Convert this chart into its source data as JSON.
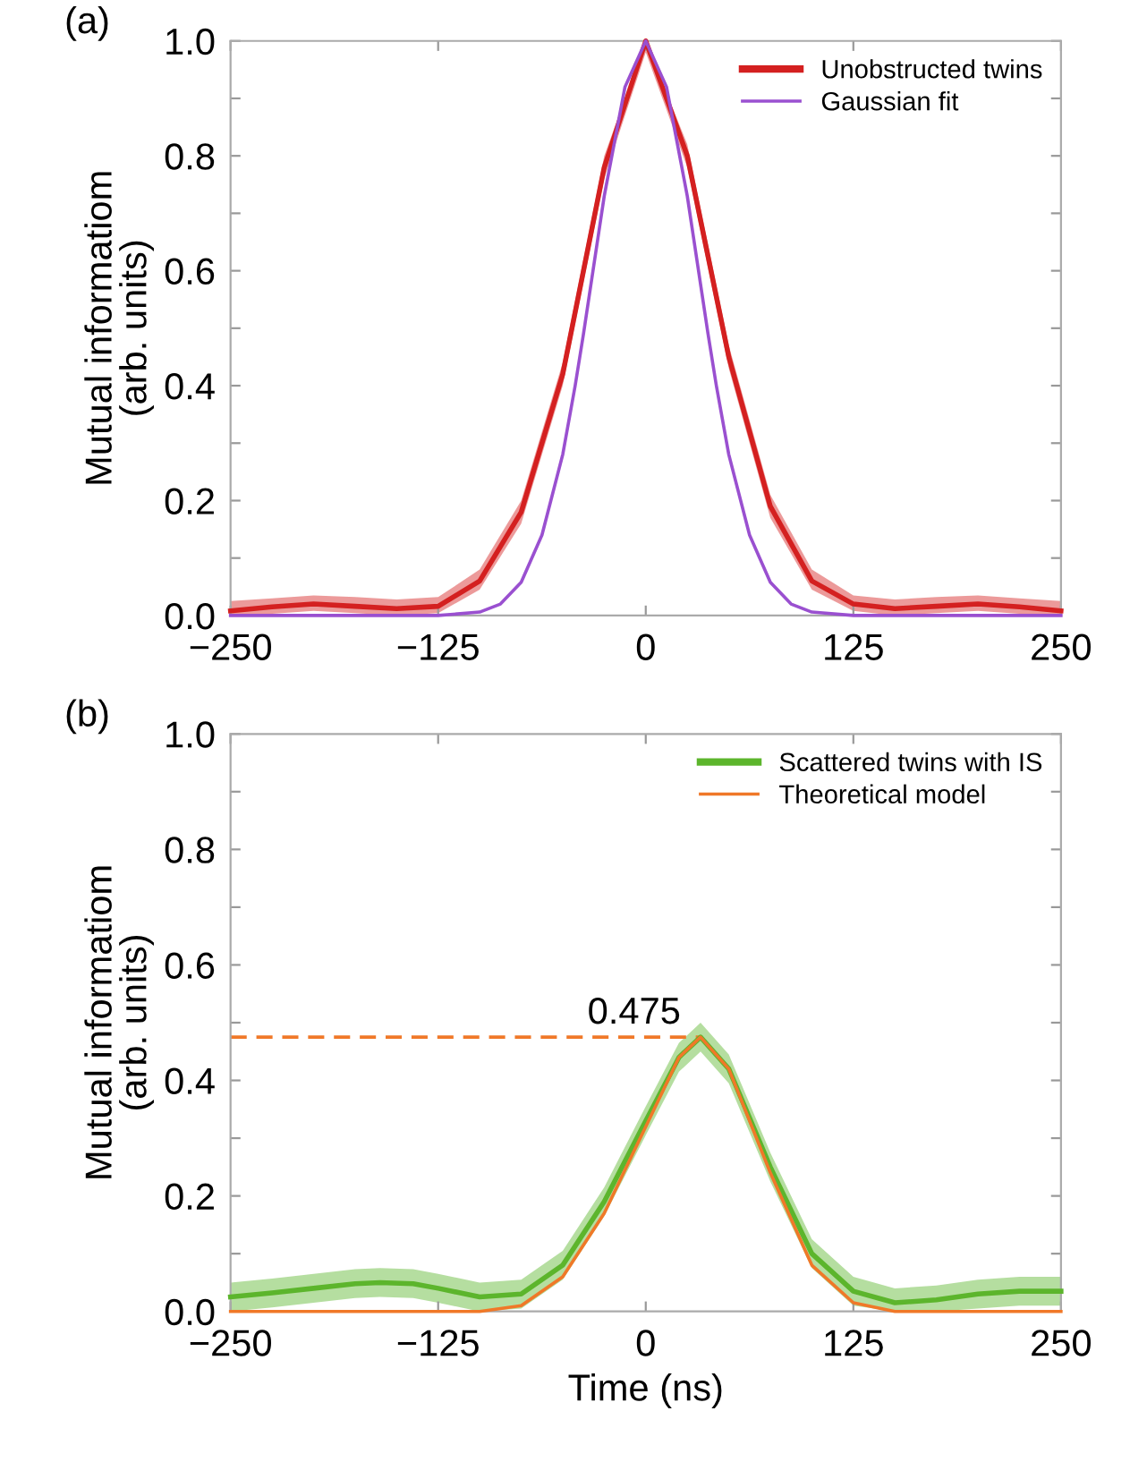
{
  "chart_data": [
    {
      "type": "line",
      "title": "(a)",
      "ylabel": "Mutual informatiom\n(arb. units)",
      "x": [
        -250,
        -225,
        -200,
        -175,
        -150,
        -125,
        -100,
        -75,
        -50,
        -25,
        0,
        25,
        50,
        75,
        100,
        125,
        150,
        175,
        200,
        225,
        250
      ],
      "series": [
        {
          "name": "Unobstructed twins",
          "color": "#d42020",
          "values": [
            0.008,
            0.015,
            0.02,
            0.016,
            0.012,
            0.016,
            0.06,
            0.18,
            0.42,
            0.78,
            1.0,
            0.8,
            0.45,
            0.19,
            0.06,
            0.02,
            0.012,
            0.016,
            0.02,
            0.015,
            0.008
          ],
          "lower": [
            0.0,
            0.003,
            0.008,
            0.004,
            0.0,
            0.004,
            0.045,
            0.16,
            0.4,
            0.76,
            0.98,
            0.78,
            0.43,
            0.17,
            0.045,
            0.008,
            0.0,
            0.004,
            0.008,
            0.003,
            0.0
          ],
          "upper": [
            0.025,
            0.03,
            0.035,
            0.032,
            0.028,
            0.032,
            0.08,
            0.2,
            0.44,
            0.8,
            1.0,
            0.82,
            0.47,
            0.21,
            0.08,
            0.035,
            0.028,
            0.032,
            0.035,
            0.03,
            0.025
          ]
        },
        {
          "name": "Gaussian fit",
          "color": "#9a50d0",
          "x": [
            -250,
            -150,
            -125,
            -100,
            -87.5,
            -75,
            -62.5,
            -50,
            -42.5,
            -37.5,
            -25,
            -12.5,
            0,
            12.5,
            25,
            37.5,
            42.5,
            50,
            62.5,
            75,
            87.5,
            100,
            125,
            150,
            250
          ],
          "values": [
            0.0,
            0.0,
            0.0,
            0.006,
            0.02,
            0.058,
            0.14,
            0.28,
            0.4,
            0.49,
            0.73,
            0.92,
            1.0,
            0.92,
            0.73,
            0.49,
            0.4,
            0.28,
            0.14,
            0.058,
            0.02,
            0.006,
            0.0,
            0.0,
            0.0
          ]
        }
      ],
      "xlim": [
        -250,
        250
      ],
      "xticks": [
        -250,
        -125,
        0,
        125,
        250
      ],
      "ylim": [
        0,
        1.0
      ],
      "yticks": [
        {
          "value": 0,
          "label": "0.0"
        },
        {
          "value": 0.1,
          "label": null
        },
        0.2,
        {
          "value": 0.3,
          "label": null
        },
        0.4,
        {
          "value": 0.5,
          "label": null
        },
        0.6,
        {
          "value": 0.7,
          "label": null
        },
        0.8,
        {
          "value": 0.9,
          "label": null
        },
        {
          "value": 1.0,
          "label": "1.0"
        }
      ],
      "legend": "top right",
      "grid": false
    },
    {
      "type": "line",
      "title": "(b)",
      "xlabel": "Time (ns)",
      "ylabel": "Mutual informatiom\n(arb. units)",
      "x": [
        -250,
        -225,
        -200,
        -175,
        -160,
        -140,
        -125,
        -100,
        -75,
        -50,
        -25,
        0,
        20,
        33,
        50,
        75,
        100,
        125,
        150,
        175,
        200,
        225,
        250
      ],
      "series": [
        {
          "name": "Scattered twins with IS",
          "color": "#5cb52c",
          "values": [
            0.025,
            0.032,
            0.04,
            0.048,
            0.05,
            0.048,
            0.04,
            0.025,
            0.03,
            0.08,
            0.19,
            0.33,
            0.44,
            0.475,
            0.42,
            0.25,
            0.1,
            0.035,
            0.015,
            0.02,
            0.03,
            0.035,
            0.035
          ],
          "lower": [
            0.0,
            0.007,
            0.015,
            0.023,
            0.025,
            0.023,
            0.015,
            0.0,
            0.005,
            0.055,
            0.165,
            0.305,
            0.415,
            0.45,
            0.395,
            0.225,
            0.075,
            0.01,
            0.0,
            0.0,
            0.005,
            0.01,
            0.01
          ],
          "upper": [
            0.05,
            0.057,
            0.065,
            0.073,
            0.075,
            0.073,
            0.065,
            0.05,
            0.055,
            0.105,
            0.215,
            0.355,
            0.465,
            0.5,
            0.445,
            0.275,
            0.125,
            0.06,
            0.04,
            0.045,
            0.055,
            0.06,
            0.06
          ]
        },
        {
          "name": "Theoretical model",
          "color": "#f07828",
          "x": [
            -250,
            -125,
            -100,
            -75,
            -50,
            -25,
            0,
            20,
            33,
            50,
            75,
            100,
            125,
            150,
            250
          ],
          "values": [
            0.0,
            0.0,
            0.0,
            0.01,
            0.06,
            0.17,
            0.32,
            0.44,
            0.475,
            0.42,
            0.24,
            0.08,
            0.015,
            0.0,
            0.0
          ]
        }
      ],
      "ref_lines": [
        {
          "axis": "y",
          "value": 0.475,
          "label": "0.475",
          "color": "#f07828",
          "line_style": "dashed"
        }
      ],
      "xlim": [
        -250,
        250
      ],
      "xticks": [
        -250,
        -125,
        0,
        125,
        250
      ],
      "ylim": [
        0,
        1.0
      ],
      "yticks": [
        {
          "value": 0,
          "label": "0.0"
        },
        {
          "value": 0.1,
          "label": null
        },
        0.2,
        {
          "value": 0.3,
          "label": null
        },
        0.4,
        {
          "value": 0.5,
          "label": null
        },
        0.6,
        {
          "value": 0.7,
          "label": null
        },
        0.8,
        {
          "value": 0.9,
          "label": null
        },
        {
          "value": 1.0,
          "label": "1.0"
        }
      ],
      "legend": "top right",
      "grid": false
    }
  ]
}
